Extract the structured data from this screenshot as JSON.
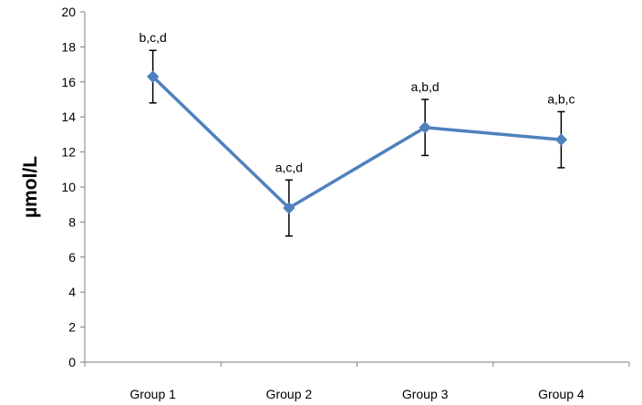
{
  "chart_data": {
    "type": "line",
    "title": "",
    "xlabel": "",
    "ylabel": "µmol/L",
    "ylim": [
      0,
      20
    ],
    "y_ticks": [
      0,
      2,
      4,
      6,
      8,
      10,
      12,
      14,
      16,
      18,
      20
    ],
    "grid": false,
    "legend": "none",
    "categories": [
      "Group 1",
      "Group 2",
      "Group 3",
      "Group 4"
    ],
    "series": [
      {
        "values": [
          16.3,
          8.8,
          13.4,
          12.7
        ],
        "error": [
          1.5,
          1.6,
          1.6,
          1.6
        ],
        "color": "#4F81BD",
        "marker": "diamond"
      }
    ],
    "annotations": [
      "b,c,d",
      "a,c,d",
      "a,b,d",
      "a,b,c"
    ]
  }
}
